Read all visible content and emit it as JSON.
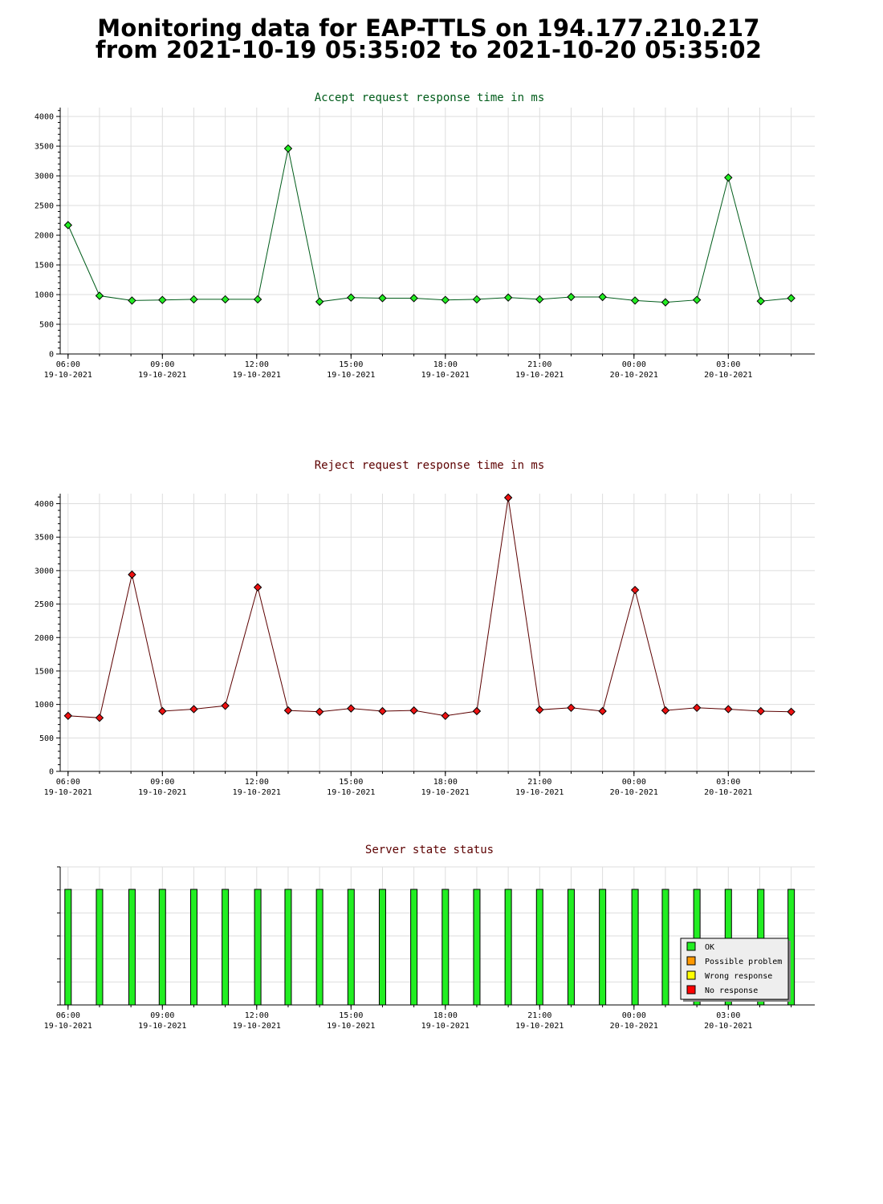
{
  "page": {
    "title_line1": "Monitoring data for EAP-TTLS on 194.177.210.217",
    "title_line2": "from 2021-10-19 05:35:02 to 2021-10-20 05:35:02"
  },
  "colors": {
    "accept_line": "#005c1a",
    "accept_marker": "#22ee22",
    "reject_line": "#5c0000",
    "reject_marker": "#ee1111",
    "accept_title": "#005c1a",
    "reject_title": "#5c0000",
    "status_title": "#5c0000",
    "ok": "#22ee22",
    "possible_problem": "#ff9900",
    "wrong_response": "#ffff00",
    "no_response": "#ff0000",
    "grid": "#dddddd"
  },
  "x_axis": {
    "tick_labels": [
      {
        "time": "06:00",
        "date": "19-10-2021"
      },
      {
        "time": "09:00",
        "date": "19-10-2021"
      },
      {
        "time": "12:00",
        "date": "19-10-2021"
      },
      {
        "time": "15:00",
        "date": "19-10-2021"
      },
      {
        "time": "18:00",
        "date": "19-10-2021"
      },
      {
        "time": "21:00",
        "date": "19-10-2021"
      },
      {
        "time": "00:00",
        "date": "20-10-2021"
      },
      {
        "time": "03:00",
        "date": "20-10-2021"
      }
    ]
  },
  "chart_data": [
    {
      "type": "line",
      "title": "Accept request response time in ms",
      "xlabel": "",
      "ylabel": "",
      "xlim": [
        "2021-10-19 05:45",
        "2021-10-20 05:45"
      ],
      "ylim": [
        0,
        4150
      ],
      "y_ticks": [
        0,
        500,
        1000,
        1500,
        2000,
        2500,
        3000,
        3500,
        4000
      ],
      "grid": true,
      "series": [
        {
          "x": [
            "2021-10-19 06:00",
            "2021-10-19 07:00",
            "2021-10-19 08:02",
            "2021-10-19 09:00",
            "2021-10-19 10:00",
            "2021-10-19 11:00",
            "2021-10-19 12:02",
            "2021-10-19 13:00",
            "2021-10-19 14:00",
            "2021-10-19 15:00",
            "2021-10-19 16:00",
            "2021-10-19 17:00",
            "2021-10-19 18:00",
            "2021-10-19 19:00",
            "2021-10-19 20:00",
            "2021-10-19 21:00",
            "2021-10-19 22:00",
            "2021-10-19 23:00",
            "2021-10-20 00:02",
            "2021-10-20 01:00",
            "2021-10-20 02:00",
            "2021-10-20 03:00",
            "2021-10-20 04:02",
            "2021-10-20 05:00"
          ],
          "y": [
            2170,
            980,
            900,
            910,
            920,
            920,
            920,
            3460,
            880,
            950,
            940,
            940,
            910,
            920,
            950,
            920,
            960,
            960,
            900,
            870,
            910,
            2970,
            890,
            940
          ]
        }
      ]
    },
    {
      "type": "line",
      "title": "Reject request response time in ms",
      "xlabel": "",
      "ylabel": "",
      "xlim": [
        "2021-10-19 05:45",
        "2021-10-20 05:45"
      ],
      "ylim": [
        0,
        4150
      ],
      "y_ticks": [
        0,
        500,
        1000,
        1500,
        2000,
        2500,
        3000,
        3500,
        4000
      ],
      "grid": true,
      "series": [
        {
          "x": [
            "2021-10-19 06:00",
            "2021-10-19 07:00",
            "2021-10-19 08:02",
            "2021-10-19 09:00",
            "2021-10-19 10:00",
            "2021-10-19 11:00",
            "2021-10-19 12:02",
            "2021-10-19 13:00",
            "2021-10-19 14:00",
            "2021-10-19 15:00",
            "2021-10-19 16:00",
            "2021-10-19 17:00",
            "2021-10-19 18:00",
            "2021-10-19 19:00",
            "2021-10-19 20:00",
            "2021-10-19 21:00",
            "2021-10-19 22:00",
            "2021-10-19 23:00",
            "2021-10-20 00:02",
            "2021-10-20 01:00",
            "2021-10-20 02:00",
            "2021-10-20 03:00",
            "2021-10-20 04:02",
            "2021-10-20 05:00"
          ],
          "y": [
            830,
            800,
            2940,
            900,
            930,
            980,
            2750,
            910,
            890,
            940,
            900,
            910,
            830,
            900,
            4090,
            920,
            950,
            900,
            2710,
            910,
            950,
            930,
            900,
            890
          ]
        }
      ]
    },
    {
      "type": "bar",
      "title": "Server state status",
      "xlabel": "",
      "ylabel": "",
      "xlim": [
        "2021-10-19 05:45",
        "2021-10-20 05:45"
      ],
      "grid": true,
      "x": [
        "2021-10-19 06:00",
        "2021-10-19 07:00",
        "2021-10-19 08:02",
        "2021-10-19 09:00",
        "2021-10-19 10:00",
        "2021-10-19 11:00",
        "2021-10-19 12:02",
        "2021-10-19 13:00",
        "2021-10-19 14:00",
        "2021-10-19 15:00",
        "2021-10-19 16:00",
        "2021-10-19 17:00",
        "2021-10-19 18:00",
        "2021-10-19 19:00",
        "2021-10-19 20:00",
        "2021-10-19 21:00",
        "2021-10-19 22:00",
        "2021-10-19 23:00",
        "2021-10-20 00:02",
        "2021-10-20 01:00",
        "2021-10-20 02:00",
        "2021-10-20 03:00",
        "2021-10-20 04:02",
        "2021-10-20 05:00"
      ],
      "status": [
        "OK",
        "OK",
        "OK",
        "OK",
        "OK",
        "OK",
        "OK",
        "OK",
        "OK",
        "OK",
        "OK",
        "OK",
        "OK",
        "OK",
        "OK",
        "OK",
        "OK",
        "OK",
        "OK",
        "OK",
        "OK",
        "OK",
        "OK",
        "OK"
      ],
      "legend": [
        "OK",
        "Possible problem",
        "Wrong response",
        "No response"
      ],
      "legend_position": "bottom-right"
    }
  ]
}
